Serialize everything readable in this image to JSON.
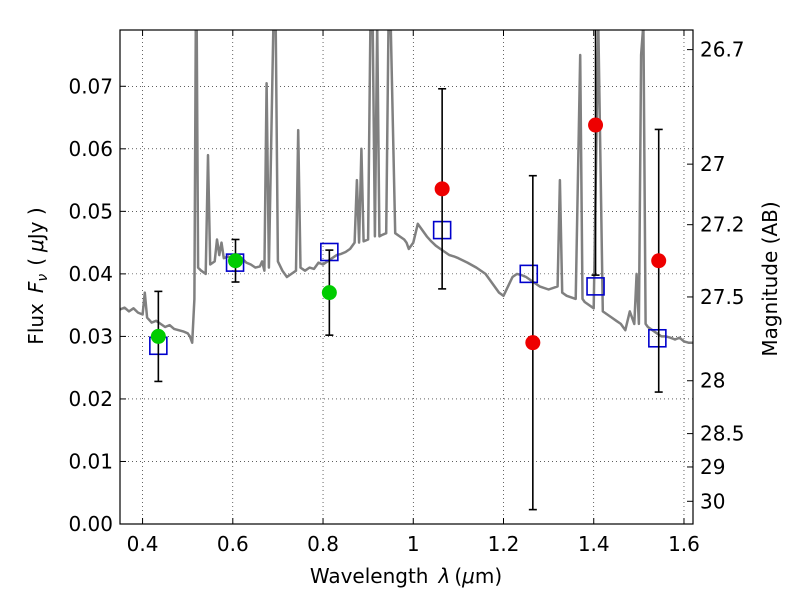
{
  "chart_data": {
    "type": "scatter",
    "xlabel_text": "Wavelength",
    "xlabel_symbol": "λ",
    "xlabel_unit_open": "(",
    "xlabel_unit_mu": "μ",
    "xlabel_unit_rest": "m)",
    "ylabel_text": "Flux",
    "ylabel_symbol": "F",
    "ylabel_sub": "ν",
    "ylabel_unit_open": "(",
    "ylabel_unit_mu": "μ",
    "ylabel_unit_rest": "Jy )",
    "y2label": "Magnitude (AB)",
    "xlim": [
      0.35,
      1.62
    ],
    "ylim": [
      0.0,
      0.079
    ],
    "grid": true,
    "x_ticks": [
      {
        "v": 0.4,
        "label": "0.4"
      },
      {
        "v": 0.6,
        "label": "0.6"
      },
      {
        "v": 0.8,
        "label": "0.8"
      },
      {
        "v": 1.0,
        "label": "1"
      },
      {
        "v": 1.2,
        "label": "1.2"
      },
      {
        "v": 1.4,
        "label": "1.4"
      },
      {
        "v": 1.6,
        "label": "1.6"
      }
    ],
    "y_ticks": [
      {
        "v": 0.0,
        "label": "0.00"
      },
      {
        "v": 0.01,
        "label": "0.01"
      },
      {
        "v": 0.02,
        "label": "0.02"
      },
      {
        "v": 0.03,
        "label": "0.03"
      },
      {
        "v": 0.04,
        "label": "0.04"
      },
      {
        "v": 0.05,
        "label": "0.05"
      },
      {
        "v": 0.06,
        "label": "0.06"
      },
      {
        "v": 0.07,
        "label": "0.07"
      }
    ],
    "mag_ticks": [
      {
        "v": 26.7,
        "label": "26.7"
      },
      {
        "v": 27,
        "label": "27"
      },
      {
        "v": 27.2,
        "label": "27.2"
      },
      {
        "v": 27.5,
        "label": "27.5"
      },
      {
        "v": 28,
        "label": "28"
      },
      {
        "v": 28.5,
        "label": "28.5"
      },
      {
        "v": 29,
        "label": "29"
      },
      {
        "v": 30,
        "label": "30"
      }
    ],
    "series": [
      {
        "marker": "square",
        "color": "#0000cc",
        "points": [
          {
            "x": 0.435,
            "y": 0.0285
          },
          {
            "x": 0.605,
            "y": 0.0418
          },
          {
            "x": 0.814,
            "y": 0.0435
          },
          {
            "x": 1.064,
            "y": 0.047
          },
          {
            "x": 1.256,
            "y": 0.04
          },
          {
            "x": 1.404,
            "y": 0.038
          },
          {
            "x": 1.541,
            "y": 0.0297
          }
        ]
      },
      {
        "marker": "circle",
        "color": "#00cc00",
        "points": [
          {
            "x": 0.435,
            "y": 0.03,
            "err": 0.0072
          },
          {
            "x": 0.606,
            "y": 0.0421,
            "err": 0.0034
          },
          {
            "x": 0.814,
            "y": 0.037,
            "err": 0.0068
          }
        ]
      },
      {
        "marker": "circle",
        "color": "#ee0000",
        "points": [
          {
            "x": 1.064,
            "y": 0.0536,
            "err": 0.016
          },
          {
            "x": 1.265,
            "y": 0.029,
            "err": 0.0267
          },
          {
            "x": 1.404,
            "y": 0.0638,
            "err": 0.024
          },
          {
            "x": 1.544,
            "y": 0.0421,
            "err": 0.021
          }
        ]
      },
      {
        "type": "line",
        "color": "#808080",
        "points": [
          [
            0.35,
            0.0343
          ],
          [
            0.36,
            0.0346
          ],
          [
            0.37,
            0.034
          ],
          [
            0.38,
            0.0345
          ],
          [
            0.39,
            0.0338
          ],
          [
            0.4,
            0.0335
          ],
          [
            0.405,
            0.037
          ],
          [
            0.41,
            0.033
          ],
          [
            0.42,
            0.0322
          ],
          [
            0.43,
            0.0325
          ],
          [
            0.44,
            0.032
          ],
          [
            0.45,
            0.0315
          ],
          [
            0.46,
            0.0318
          ],
          [
            0.47,
            0.0312
          ],
          [
            0.48,
            0.031
          ],
          [
            0.49,
            0.0308
          ],
          [
            0.5,
            0.0305
          ],
          [
            0.505,
            0.03
          ],
          [
            0.51,
            0.029
          ],
          [
            0.515,
            0.036
          ],
          [
            0.518,
            0.08
          ],
          [
            0.52,
            0.08
          ],
          [
            0.523,
            0.041
          ],
          [
            0.53,
            0.0405
          ],
          [
            0.54,
            0.04
          ],
          [
            0.545,
            0.059
          ],
          [
            0.55,
            0.0415
          ],
          [
            0.56,
            0.042
          ],
          [
            0.565,
            0.0455
          ],
          [
            0.57,
            0.043
          ],
          [
            0.575,
            0.045
          ],
          [
            0.58,
            0.0425
          ],
          [
            0.59,
            0.0428
          ],
          [
            0.6,
            0.0422
          ],
          [
            0.61,
            0.042
          ],
          [
            0.62,
            0.0425
          ],
          [
            0.63,
            0.0418
          ],
          [
            0.64,
            0.0415
          ],
          [
            0.65,
            0.041
          ],
          [
            0.66,
            0.0412
          ],
          [
            0.665,
            0.042
          ],
          [
            0.67,
            0.0405
          ],
          [
            0.675,
            0.0705
          ],
          [
            0.68,
            0.041
          ],
          [
            0.69,
            0.08
          ],
          [
            0.695,
            0.08
          ],
          [
            0.7,
            0.042
          ],
          [
            0.71,
            0.0405
          ],
          [
            0.72,
            0.0395
          ],
          [
            0.73,
            0.04
          ],
          [
            0.74,
            0.0405
          ],
          [
            0.745,
            0.063
          ],
          [
            0.75,
            0.041
          ],
          [
            0.76,
            0.0405
          ],
          [
            0.77,
            0.041
          ],
          [
            0.78,
            0.0408
          ],
          [
            0.79,
            0.0418
          ],
          [
            0.8,
            0.0415
          ],
          [
            0.81,
            0.042
          ],
          [
            0.82,
            0.0425
          ],
          [
            0.83,
            0.043
          ],
          [
            0.84,
            0.0432
          ],
          [
            0.85,
            0.0435
          ],
          [
            0.86,
            0.044
          ],
          [
            0.87,
            0.045
          ],
          [
            0.875,
            0.055
          ],
          [
            0.88,
            0.045
          ],
          [
            0.885,
            0.06
          ],
          [
            0.89,
            0.0452
          ],
          [
            0.9,
            0.0455
          ],
          [
            0.905,
            0.08
          ],
          [
            0.91,
            0.08
          ],
          [
            0.915,
            0.046
          ],
          [
            0.92,
            0.08
          ],
          [
            0.925,
            0.046
          ],
          [
            0.93,
            0.0462
          ],
          [
            0.94,
            0.0465
          ],
          [
            0.945,
            0.08
          ],
          [
            0.95,
            0.08
          ],
          [
            0.96,
            0.0465
          ],
          [
            0.97,
            0.046
          ],
          [
            0.98,
            0.0455
          ],
          [
            0.985,
            0.045
          ],
          [
            0.99,
            0.044
          ],
          [
            1.0,
            0.045
          ],
          [
            1.01,
            0.048
          ],
          [
            1.02,
            0.047
          ],
          [
            1.03,
            0.046
          ],
          [
            1.04,
            0.0452
          ],
          [
            1.05,
            0.0445
          ],
          [
            1.06,
            0.044
          ],
          [
            1.07,
            0.0435
          ],
          [
            1.08,
            0.043
          ],
          [
            1.09,
            0.0428
          ],
          [
            1.1,
            0.0425
          ],
          [
            1.12,
            0.0418
          ],
          [
            1.14,
            0.041
          ],
          [
            1.16,
            0.04
          ],
          [
            1.18,
            0.038
          ],
          [
            1.19,
            0.037
          ],
          [
            1.2,
            0.0365
          ],
          [
            1.21,
            0.038
          ],
          [
            1.22,
            0.0395
          ],
          [
            1.23,
            0.04
          ],
          [
            1.24,
            0.0398
          ],
          [
            1.25,
            0.0395
          ],
          [
            1.26,
            0.039
          ],
          [
            1.28,
            0.038
          ],
          [
            1.3,
            0.0375
          ],
          [
            1.32,
            0.038
          ],
          [
            1.325,
            0.055
          ],
          [
            1.33,
            0.037
          ],
          [
            1.34,
            0.0365
          ],
          [
            1.36,
            0.036
          ],
          [
            1.37,
            0.075
          ],
          [
            1.375,
            0.036
          ],
          [
            1.38,
            0.0355
          ],
          [
            1.4,
            0.0345
          ],
          [
            1.41,
            0.08
          ],
          [
            1.42,
            0.034
          ],
          [
            1.44,
            0.033
          ],
          [
            1.45,
            0.0325
          ],
          [
            1.46,
            0.032
          ],
          [
            1.47,
            0.031
          ],
          [
            1.48,
            0.034
          ],
          [
            1.49,
            0.032
          ],
          [
            1.495,
            0.04
          ],
          [
            1.5,
            0.032
          ],
          [
            1.505,
            0.075
          ],
          [
            1.51,
            0.08
          ],
          [
            1.515,
            0.032
          ],
          [
            1.52,
            0.0315
          ],
          [
            1.53,
            0.031
          ],
          [
            1.54,
            0.0305
          ],
          [
            1.55,
            0.03
          ],
          [
            1.56,
            0.03
          ],
          [
            1.57,
            0.0298
          ],
          [
            1.58,
            0.0295
          ],
          [
            1.59,
            0.0298
          ],
          [
            1.6,
            0.0292
          ],
          [
            1.61,
            0.029
          ],
          [
            1.62,
            0.029
          ]
        ]
      }
    ]
  }
}
